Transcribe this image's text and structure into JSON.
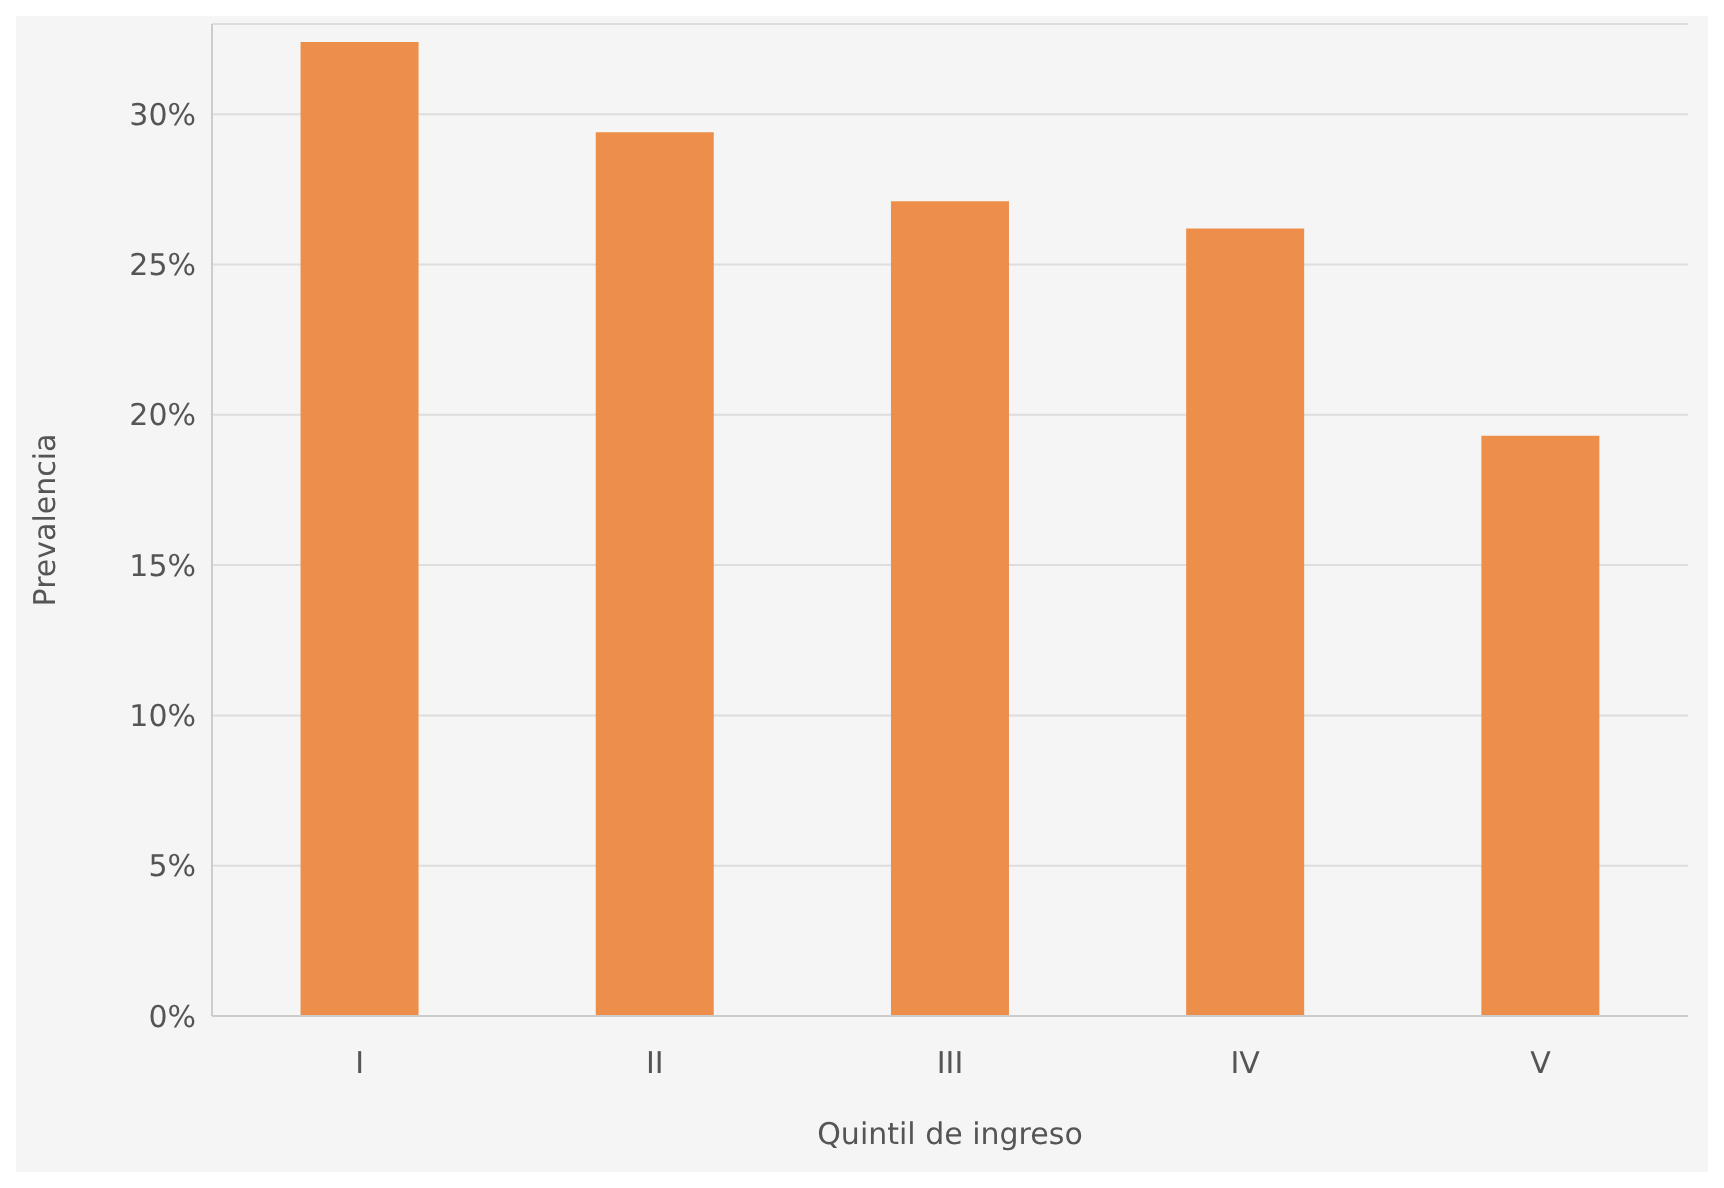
{
  "chart_data": {
    "type": "bar",
    "xlabel": "Quintil de ingreso",
    "ylabel": "Prevalencia",
    "categories": [
      "I",
      "II",
      "III",
      "IV",
      "V"
    ],
    "values": [
      32.4,
      29.4,
      27.1,
      26.2,
      19.3
    ],
    "color": "#ed8f4a",
    "ylim": [
      0,
      33
    ],
    "yticks": [
      {
        "value": 0,
        "label": "0%"
      },
      {
        "value": 5,
        "label": "5%"
      },
      {
        "value": 10,
        "label": "10%"
      },
      {
        "value": 15,
        "label": "15%"
      },
      {
        "value": 20,
        "label": "20%"
      },
      {
        "value": 25,
        "label": "25%"
      },
      {
        "value": 30,
        "label": "30%"
      }
    ],
    "grid": "y"
  }
}
